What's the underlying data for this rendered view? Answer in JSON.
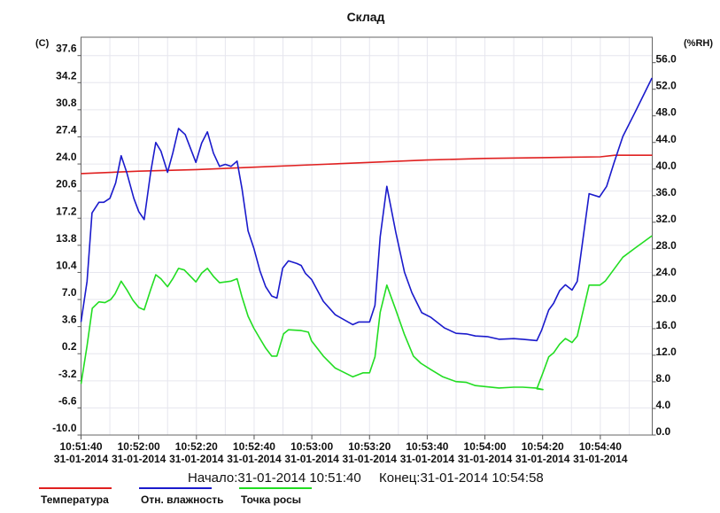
{
  "chart_data": {
    "type": "line",
    "title": "Склад",
    "ylabel_left": "(C)",
    "ylabel_right": "(%RH)",
    "x_unit": "seconds since 10:51:40",
    "xlim": [
      0,
      198
    ],
    "ylim_left": [
      -10.0,
      37.6
    ],
    "ylim_right": [
      0.0,
      56.0
    ],
    "left_ticks": [
      "37.6",
      "34.2",
      "30.8",
      "27.4",
      "24.0",
      "20.6",
      "17.2",
      "13.8",
      "10.4",
      "7.0",
      "3.6",
      "0.2",
      "-3.2",
      "-6.6",
      "-10.0"
    ],
    "right_ticks": [
      "56.0",
      "52.0",
      "48.0",
      "44.0",
      "40.0",
      "36.0",
      "32.0",
      "28.0",
      "24.0",
      "20.0",
      "16.0",
      "12.0",
      "8.0",
      "4.0",
      "0.0"
    ],
    "x_ticks": [
      {
        "t": 0,
        "time": "10:51:40",
        "date": "31-01-2014"
      },
      {
        "t": 20,
        "time": "10:52:00",
        "date": "31-01-2014"
      },
      {
        "t": 40,
        "time": "10:52:20",
        "date": "31-01-2014"
      },
      {
        "t": 60,
        "time": "10:52:40",
        "date": "31-01-2014"
      },
      {
        "t": 80,
        "time": "10:53:00",
        "date": "31-01-2014"
      },
      {
        "t": 100,
        "time": "10:53:20",
        "date": "31-01-2014"
      },
      {
        "t": 120,
        "time": "10:53:40",
        "date": "31-01-2014"
      },
      {
        "t": 140,
        "time": "10:54:00",
        "date": "31-01-2014"
      },
      {
        "t": 160,
        "time": "10:54:20",
        "date": "31-01-2014"
      },
      {
        "t": 180,
        "time": "10:54:40",
        "date": "31-01-2014"
      }
    ],
    "grid": true,
    "legend_placement": "bottom-left",
    "series": [
      {
        "name": "Температура",
        "color": "#e02020",
        "axis": "left",
        "points": [
          [
            0,
            22.8
          ],
          [
            20,
            23.1
          ],
          [
            40,
            23.3
          ],
          [
            60,
            23.6
          ],
          [
            80,
            23.9
          ],
          [
            100,
            24.2
          ],
          [
            120,
            24.5
          ],
          [
            140,
            24.7
          ],
          [
            160,
            24.8
          ],
          [
            180,
            24.9
          ],
          [
            185,
            25.1
          ],
          [
            198,
            25.1
          ]
        ]
      },
      {
        "name": "Отн. влажность",
        "color": "#1a1acc",
        "axis": "right",
        "points": [
          [
            0,
            17.0
          ],
          [
            2.1,
            23.1
          ],
          [
            3.8,
            33.4
          ],
          [
            6.2,
            35.0
          ],
          [
            7.9,
            35.0
          ],
          [
            10,
            35.6
          ],
          [
            12,
            37.9
          ],
          [
            13.9,
            42.0
          ],
          [
            15.9,
            39.4
          ],
          [
            18.3,
            35.6
          ],
          [
            20,
            33.6
          ],
          [
            21.9,
            32.4
          ],
          [
            24.1,
            39.4
          ],
          [
            25.9,
            44.0
          ],
          [
            27.7,
            42.7
          ],
          [
            30,
            39.5
          ],
          [
            31.8,
            42.4
          ],
          [
            33.8,
            46.1
          ],
          [
            36.1,
            45.2
          ],
          [
            39.8,
            41.0
          ],
          [
            41.8,
            43.9
          ],
          [
            43.8,
            45.6
          ],
          [
            45.9,
            42.4
          ],
          [
            48,
            40.4
          ],
          [
            50,
            40.7
          ],
          [
            52,
            40.4
          ],
          [
            54.1,
            41.2
          ],
          [
            55.8,
            37.0
          ],
          [
            57.9,
            30.7
          ],
          [
            59.9,
            28.1
          ],
          [
            62,
            24.7
          ],
          [
            64,
            22.3
          ],
          [
            66.1,
            20.9
          ],
          [
            67.9,
            20.6
          ],
          [
            69.9,
            25.1
          ],
          [
            71.9,
            26.2
          ],
          [
            74.8,
            25.8
          ],
          [
            76.3,
            25.5
          ],
          [
            77.8,
            24.3
          ],
          [
            79.9,
            23.4
          ],
          [
            84,
            20.1
          ],
          [
            88.1,
            18.1
          ],
          [
            94.2,
            16.6
          ],
          [
            96.3,
            17.0
          ],
          [
            100,
            17.0
          ],
          [
            101.9,
            19.5
          ],
          [
            103.7,
            29.8
          ],
          [
            106,
            37.4
          ],
          [
            109.1,
            30.5
          ],
          [
            112.1,
            24.5
          ],
          [
            114.7,
            21.4
          ],
          [
            118.1,
            18.4
          ],
          [
            121.3,
            17.7
          ],
          [
            126,
            16.1
          ],
          [
            130,
            15.3
          ],
          [
            133.6,
            15.2
          ],
          [
            136.7,
            14.9
          ],
          [
            140.8,
            14.8
          ],
          [
            144.9,
            14.4
          ],
          [
            150,
            14.5
          ],
          [
            153.1,
            14.4
          ],
          [
            158,
            14.2
          ],
          [
            159.7,
            15.8
          ],
          [
            162.1,
            18.8
          ],
          [
            163.8,
            19.8
          ],
          [
            165.9,
            21.7
          ],
          [
            167.9,
            22.6
          ],
          [
            170.2,
            21.8
          ],
          [
            172,
            23.1
          ],
          [
            176.1,
            36.3
          ],
          [
            179.7,
            35.8
          ],
          [
            182.2,
            37.4
          ],
          [
            184.8,
            41.0
          ],
          [
            187.8,
            44.9
          ],
          [
            191.9,
            48.4
          ],
          [
            197.9,
            53.7
          ]
        ]
      },
      {
        "name": "Точка росы",
        "color": "#22dd22",
        "axis": "left",
        "points": [
          [
            0,
            -3.6
          ],
          [
            2.1,
            1.2
          ],
          [
            3.9,
            5.9
          ],
          [
            6.2,
            6.7
          ],
          [
            8.3,
            6.6
          ],
          [
            10.3,
            7.0
          ],
          [
            11.8,
            7.7
          ],
          [
            13.9,
            9.3
          ],
          [
            15.9,
            8.2
          ],
          [
            18,
            6.9
          ],
          [
            20,
            6.0
          ],
          [
            21.9,
            5.7
          ],
          [
            24.1,
            8.2
          ],
          [
            25.9,
            10.1
          ],
          [
            27.7,
            9.6
          ],
          [
            30,
            8.6
          ],
          [
            31.8,
            9.6
          ],
          [
            33.8,
            10.9
          ],
          [
            35.8,
            10.7
          ],
          [
            39.8,
            9.2
          ],
          [
            41.8,
            10.3
          ],
          [
            43.8,
            10.9
          ],
          [
            45.9,
            9.9
          ],
          [
            48,
            9.1
          ],
          [
            50,
            9.2
          ],
          [
            52,
            9.3
          ],
          [
            54.1,
            9.6
          ],
          [
            55.8,
            7.3
          ],
          [
            57.9,
            4.9
          ],
          [
            59.9,
            3.4
          ],
          [
            62,
            2.1
          ],
          [
            64,
            0.9
          ],
          [
            66.1,
            -0.1
          ],
          [
            67.9,
            -0.1
          ],
          [
            70.2,
            2.7
          ],
          [
            71.9,
            3.2
          ],
          [
            76.3,
            3.1
          ],
          [
            78.8,
            2.9
          ],
          [
            79.9,
            1.8
          ],
          [
            84,
            -0.1
          ],
          [
            88.1,
            -1.6
          ],
          [
            94.2,
            -2.7
          ],
          [
            97.8,
            -2.2
          ],
          [
            100,
            -2.2
          ],
          [
            101.9,
            -0.2
          ],
          [
            103.7,
            5.4
          ],
          [
            106,
            8.8
          ],
          [
            109.1,
            5.7
          ],
          [
            112.1,
            2.6
          ],
          [
            115.2,
            -0.1
          ],
          [
            117.8,
            -1.0
          ],
          [
            121.3,
            -1.8
          ],
          [
            125.4,
            -2.7
          ],
          [
            130,
            -3.3
          ],
          [
            133.6,
            -3.4
          ],
          [
            136.7,
            -3.8
          ],
          [
            144.9,
            -4.1
          ],
          [
            150,
            -4.0
          ],
          [
            153.1,
            -4.0
          ],
          [
            157.6,
            -4.1
          ],
          [
            160.1,
            -4.3
          ],
          [
            158,
            -4.2
          ],
          [
            160.2,
            -2.1
          ],
          [
            162.1,
            -0.2
          ],
          [
            163.8,
            0.3
          ],
          [
            165.9,
            1.4
          ],
          [
            167.9,
            2.1
          ],
          [
            170.2,
            1.6
          ],
          [
            172,
            2.4
          ],
          [
            176.1,
            8.8
          ],
          [
            179.9,
            8.8
          ],
          [
            181.7,
            9.3
          ],
          [
            187.8,
            12.3
          ],
          [
            191.9,
            13.4
          ],
          [
            197.9,
            15.0
          ]
        ]
      }
    ]
  },
  "footer": {
    "start": "Начало:31-01-2014 10:51:40",
    "end": "Конец:31-01-2014 10:54:58"
  }
}
